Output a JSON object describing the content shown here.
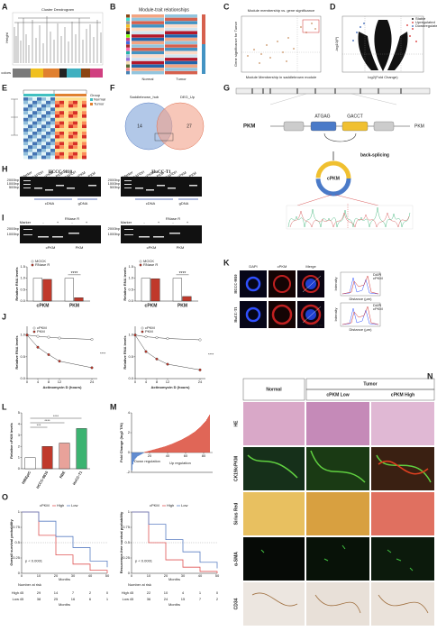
{
  "panels": {
    "A": {
      "letter": "A",
      "title": "Cluster Dendrogram",
      "ylabel": "Height",
      "track": "Module colors"
    },
    "B": {
      "letter": "B",
      "title": "Module-trait relationships",
      "columns": [
        "Normal",
        "Tumor"
      ]
    },
    "C": {
      "letter": "C",
      "title": "Module membership vs. gene significance",
      "xlabel": "Module Membership in saddlebrown module",
      "ylabel": "Gene significance for Tumor"
    },
    "D": {
      "letter": "D",
      "legend": [
        "Stable",
        "Upregulated",
        "Downregulated"
      ],
      "xlabel": "log2(Fold Change)",
      "ylabel": "-log10(P)"
    },
    "E": {
      "letter": "E",
      "legend": [
        "Group",
        "Normal",
        "Tumor"
      ]
    },
    "F": {
      "letter": "F",
      "sets": [
        "Saddlebrown_hub",
        "DEG_Up"
      ],
      "counts": [
        "14",
        "27"
      ]
    },
    "G": {
      "letter": "G",
      "gene": "PKM",
      "seq_left": "ATGAG",
      "seq_right": "GACCT",
      "process": "back-splicing",
      "circ": "cPKM"
    },
    "H": {
      "letter": "H",
      "cells": [
        "HCCC-9810",
        "HuCC-T1"
      ],
      "ladder": [
        "2000bp",
        "1000bp",
        "500bp"
      ],
      "lanes": [
        "Marker",
        "GAPDH",
        "cPKM",
        "PKM",
        "GAPDH",
        "cPKM",
        "PKM"
      ],
      "groups": [
        "cDNA",
        "gDNA"
      ]
    },
    "I": {
      "letter": "I",
      "header": "RNase R",
      "lanes": [
        "Marker",
        "-",
        "+",
        "-",
        "+"
      ],
      "groups": [
        "cPKM",
        "PKM"
      ],
      "ladder": [
        "2000bp",
        "1000bp"
      ],
      "charts": [
        {
          "ylabel": "Relative RNA levels",
          "categories": [
            "cPKM",
            "PKM"
          ],
          "sig": "****",
          "ylim": [
            0,
            1.5
          ],
          "yticks": [
            {
              "value": 0,
              "label": "0.0"
            },
            0.5,
            {
              "value": 1,
              "label": "1.0"
            },
            1.5
          ],
          "series": [
            {
              "name": "MOCK",
              "color": "#ffffff",
              "values": [
                1.0,
                1.0
              ]
            },
            {
              "name": "RNase R",
              "color": "#c0392b",
              "values": [
                0.95,
                0.15
              ]
            }
          ]
        },
        {
          "ylabel": "Relative RNA levels",
          "categories": [
            "cPKM",
            "PKM"
          ],
          "sig": "****",
          "ylim": [
            0,
            1.5
          ],
          "yticks": [
            {
              "value": 0,
              "label": "0.0"
            },
            0.5,
            {
              "value": 1,
              "label": "1.0"
            },
            1.5
          ],
          "series": [
            {
              "name": "MOCK",
              "color": "#ffffff",
              "values": [
                1.0,
                1.0
              ]
            },
            {
              "name": "RNase R",
              "color": "#c0392b",
              "values": [
                0.98,
                0.2
              ]
            }
          ]
        }
      ]
    },
    "J": {
      "letter": "J",
      "charts": [
        {
          "ylabel": "Relative RNA levels",
          "xlabel": "Actinomycin D (hours)",
          "cell": "HCCC-9810",
          "sig": "****",
          "x": [
            0,
            4,
            8,
            12,
            24
          ],
          "xlim": [
            0,
            26
          ],
          "ylim": [
            0,
            1.2
          ],
          "yticks": [
            {
              "value": 0,
              "label": "0.0"
            },
            0.5,
            {
              "value": 1,
              "label": "1.0"
            }
          ],
          "series": [
            {
              "name": "cPKM",
              "color": "#ffffff",
              "values": [
                1.0,
                0.97,
                0.95,
                0.93,
                0.9
              ]
            },
            {
              "name": "PKM",
              "color": "#c0392b",
              "values": [
                1.0,
                0.72,
                0.55,
                0.4,
                0.25
              ]
            }
          ]
        },
        {
          "ylabel": "Relative RNA levels",
          "xlabel": "Actinomycin D (hours)",
          "cell": "HuCC-T1",
          "sig": "****",
          "x": [
            0,
            4,
            8,
            12,
            24
          ],
          "xlim": [
            0,
            26
          ],
          "ylim": [
            0,
            1.2
          ],
          "yticks": [
            {
              "value": 0,
              "label": "0.0"
            },
            0.5,
            {
              "value": 1,
              "label": "1.0"
            }
          ],
          "series": [
            {
              "name": "cPKM",
              "color": "#ffffff",
              "values": [
                1.0,
                0.96,
                0.94,
                0.92,
                0.89
              ]
            },
            {
              "name": "PKM",
              "color": "#c0392b",
              "values": [
                1.0,
                0.62,
                0.45,
                0.33,
                0.2
              ]
            }
          ]
        }
      ]
    },
    "K": {
      "letter": "K",
      "columns": [
        "DAPI",
        "cPKM",
        "Merge"
      ],
      "rows": [
        "HCCC-9810",
        "HuCC-T1"
      ],
      "profile_xlabel": "Distance (µm)",
      "profile_ylabel": "Intensity",
      "profile_legend": [
        "DAPI",
        "cPKM"
      ],
      "scale": "20µm"
    },
    "L": {
      "letter": "L",
      "ylabel": "Relative cPKM levels",
      "categories": [
        "HIBEpiC",
        "HCCC-9810",
        "RBE",
        "HuCC-T1"
      ],
      "values": [
        1.0,
        2.0,
        2.3,
        3.6
      ],
      "colors": [
        "#ffffff",
        "#c0392b",
        "#e8a29a",
        "#3cb371"
      ],
      "ylim": [
        0,
        5
      ],
      "yticks": [
        0,
        1,
        2,
        3,
        4,
        5
      ],
      "sig": [
        "***",
        "****",
        "****"
      ]
    },
    "M": {
      "letter": "M",
      "ylabel": "Fold Change (log2 T/N)",
      "down": "Down regulation",
      "up": "Up regulation",
      "xlim": [
        0,
        90
      ],
      "xticks": [
        20,
        40,
        60,
        80
      ],
      "ylim": [
        -2,
        4
      ],
      "yticks": [
        -2,
        0,
        2,
        4
      ],
      "values": [
        -1.8,
        -1.2,
        -0.9,
        -0.7,
        -0.6,
        -0.5,
        -0.4,
        -0.35,
        -0.3,
        -0.25,
        -0.2,
        -0.15,
        -0.1,
        -0.05,
        0.05,
        0.08,
        0.1,
        0.12,
        0.15,
        0.18,
        0.2,
        0.22,
        0.25,
        0.28,
        0.3,
        0.32,
        0.35,
        0.38,
        0.4,
        0.42,
        0.45,
        0.48,
        0.5,
        0.52,
        0.55,
        0.58,
        0.6,
        0.63,
        0.66,
        0.7,
        0.73,
        0.76,
        0.8,
        0.83,
        0.86,
        0.9,
        0.94,
        0.98,
        1.02,
        1.06,
        1.1,
        1.14,
        1.18,
        1.22,
        1.26,
        1.3,
        1.35,
        1.4,
        1.45,
        1.5,
        1.55,
        1.6,
        1.65,
        1.7,
        1.76,
        1.82,
        1.88,
        1.94,
        2.0,
        2.06,
        2.12,
        2.2,
        2.28,
        2.36,
        2.44,
        2.52,
        2.6,
        2.7,
        2.8,
        2.9,
        3.0,
        3.1,
        3.2,
        3.35,
        3.5,
        3.65,
        3.8
      ]
    },
    "N": {
      "letter": "N",
      "normal": "Normal",
      "tumor": "Tumor",
      "columns": [
        "cPKM Low",
        "cPKM High"
      ],
      "rows": [
        "HE",
        "CK19/cPKM",
        "Sirius Red",
        "α-SMA",
        "CD34"
      ]
    },
    "O": {
      "letter": "O",
      "legend_title": "cPKM",
      "risk_title": "Number at risk",
      "charts": [
        {
          "ylabel": "Overall survival probability",
          "xlabel": "Months",
          "p": "p < 0.0001",
          "x": [
            0,
            10,
            20,
            30,
            40,
            50
          ],
          "xlim": [
            0,
            50
          ],
          "ylim": [
            0,
            1
          ],
          "yticks": [
            0,
            0.25,
            0.5,
            0.75,
            1
          ],
          "series": [
            {
              "name": "High",
              "color": "#e05555",
              "values": [
                1.0,
                0.62,
                0.3,
                0.15,
                0.05,
                0.0
              ],
              "risk": [
                45,
                29,
                14,
                7,
                2,
                0
              ]
            },
            {
              "name": "Low",
              "color": "#5b7fc4",
              "values": [
                1.0,
                0.85,
                0.6,
                0.42,
                0.2,
                0.1
              ],
              "risk": [
                45,
                38,
                25,
                16,
                6,
                1
              ]
            }
          ]
        },
        {
          "ylabel": "Recurrence-free survival probability",
          "xlabel": "Months",
          "p": "p < 0.0001",
          "x": [
            0,
            10,
            20,
            30,
            40,
            50
          ],
          "xlim": [
            0,
            50
          ],
          "ylim": [
            0,
            1
          ],
          "yticks": [
            0,
            0.25,
            0.5,
            0.75,
            1
          ],
          "series": [
            {
              "name": "High",
              "color": "#e05555",
              "values": [
                1.0,
                0.5,
                0.22,
                0.1,
                0.03,
                0.0
              ],
              "risk": [
                45,
                22,
                10,
                4,
                1,
                0
              ]
            },
            {
              "name": "Low",
              "color": "#5b7fc4",
              "values": [
                1.0,
                0.8,
                0.55,
                0.35,
                0.18,
                0.08
              ],
              "risk": [
                45,
                36,
                24,
                15,
                7,
                2
              ]
            }
          ]
        }
      ]
    }
  }
}
